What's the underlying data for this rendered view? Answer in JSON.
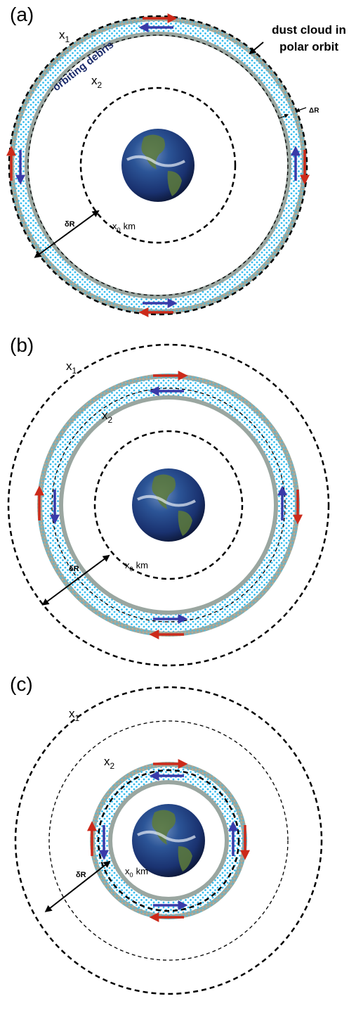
{
  "panels": [
    {
      "label": "(a)",
      "x1": {
        "base": "x",
        "sub": "1"
      },
      "x2": {
        "base": "x",
        "sub": "2"
      },
      "x0": {
        "base": "x",
        "sub": "0",
        "unit": "km"
      },
      "delta_r_small": "δR",
      "debris_label": "orbiting debris",
      "dust_label": [
        "dust cloud in",
        "polar orbit"
      ],
      "delta_r": "ΔR"
    },
    {
      "label": "(b)",
      "x1": {
        "base": "x",
        "sub": "1"
      },
      "x2": {
        "base": "x",
        "sub": "2"
      },
      "x0": {
        "base": "x",
        "sub": "0",
        "unit": "km"
      },
      "delta_r_small": "δR"
    },
    {
      "label": "(c)",
      "x1": {
        "base": "x",
        "sub": "1"
      },
      "x2": {
        "base": "x",
        "sub": "2"
      },
      "x0": {
        "base": "x",
        "sub": "0",
        "unit": "km"
      },
      "delta_r_small": "δR"
    }
  ]
}
